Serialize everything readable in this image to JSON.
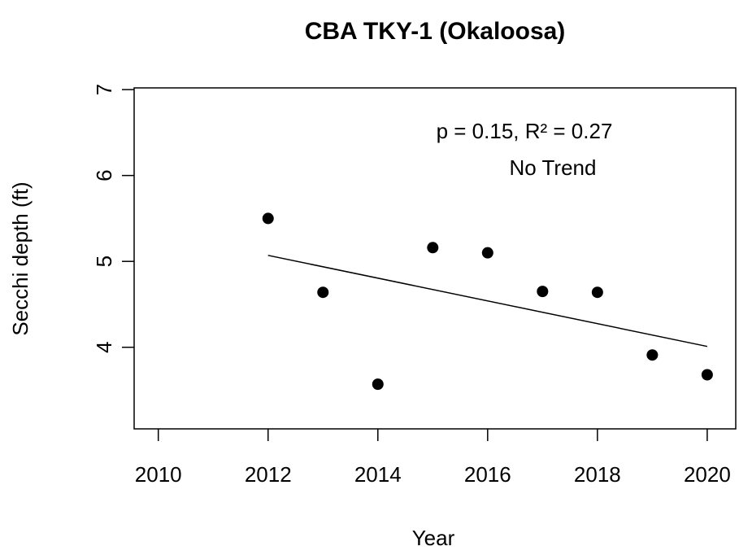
{
  "chart_data": {
    "type": "scatter",
    "title": "CBA TKY-1 (Okaloosa)",
    "xlabel": "Year",
    "ylabel": "Secchi depth (ft)",
    "annotations": [
      "p = 0.15, R² = 0.27",
      "No Trend"
    ],
    "x": [
      2012,
      2013,
      2014,
      2015,
      2016,
      2017,
      2018,
      2019,
      2020
    ],
    "series": [
      {
        "color": "#000000",
        "values": [
          5.5,
          4.64,
          3.57,
          5.16,
          5.1,
          4.65,
          4.64,
          3.91,
          3.68
        ]
      }
    ],
    "trend": {
      "color": "#000000",
      "x": [
        2012,
        2020
      ],
      "values": [
        5.07,
        4.01
      ]
    },
    "xlim": [
      2009.56,
      2020.52
    ],
    "ylim": [
      3.05,
      7.02
    ],
    "xticks": [
      2010,
      2012,
      2014,
      2016,
      2018,
      2020
    ],
    "yticks": [
      4,
      5,
      6,
      7
    ]
  }
}
